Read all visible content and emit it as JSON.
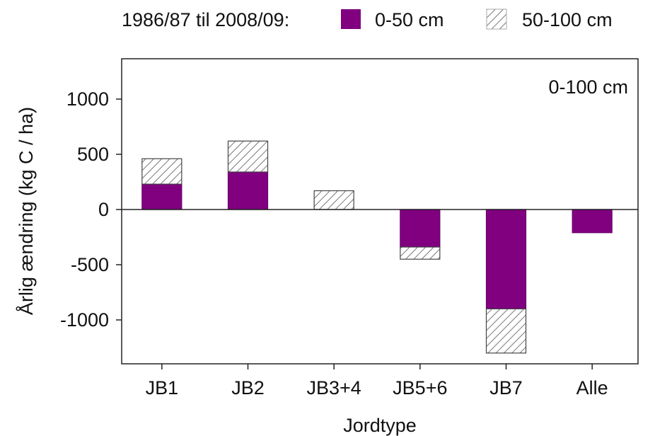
{
  "chart_data": {
    "type": "bar",
    "stacked": true,
    "legend": {
      "title": "1986/87 til 2008/09:",
      "placement": "top"
    },
    "annotation": "0-100 cm",
    "xlabel": "Jordtype",
    "ylabel": "Årlig ændring (kg C / ha)",
    "ylim": [
      -1380,
      1380
    ],
    "yticks": [
      -1000,
      -500,
      0,
      500,
      1000
    ],
    "categories": [
      "JB1",
      "JB2",
      "JB3+4",
      "JB5+6",
      "JB7",
      "Alle"
    ],
    "series": [
      {
        "name": "0-50 cm",
        "color": "#800080",
        "pattern": "solid",
        "values": [
          230,
          340,
          0,
          -340,
          -900,
          -210
        ]
      },
      {
        "name": "50-100 cm",
        "color": "#ffffff",
        "pattern": "hatch",
        "values": [
          230,
          280,
          170,
          -110,
          -400,
          0
        ]
      }
    ],
    "grid": false
  }
}
